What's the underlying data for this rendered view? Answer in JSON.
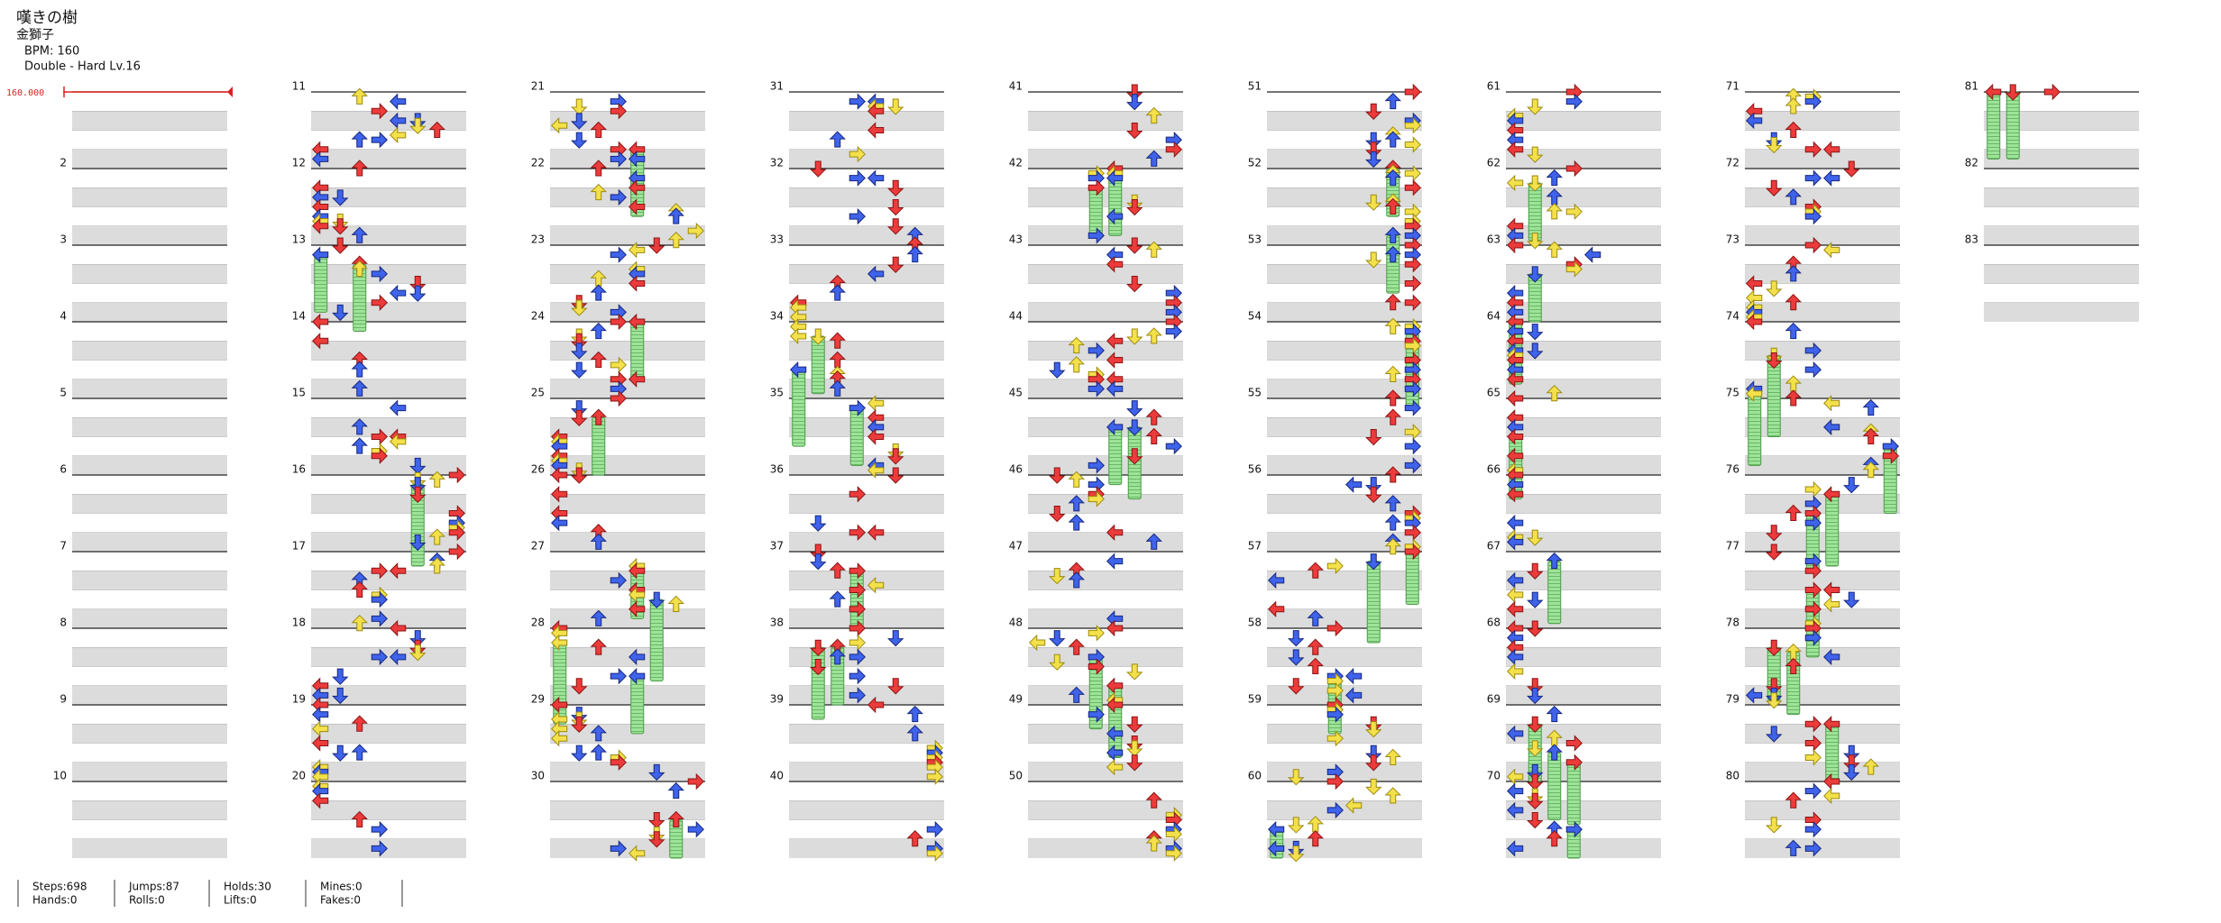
{
  "header": {
    "title": "嘆きの樹",
    "artist": "金獅子",
    "bpm": "BPM: 160",
    "difficulty": "Double - Hard Lv.16"
  },
  "bpm_marker": "160.000",
  "measure_labels": [
    2,
    3,
    4,
    5,
    6,
    7,
    8,
    9,
    10,
    11,
    12,
    13,
    14,
    15,
    16,
    17,
    18,
    19,
    20,
    21,
    22,
    23,
    24,
    25,
    26,
    27,
    28,
    29,
    30,
    31,
    32,
    33,
    34,
    35,
    36,
    37,
    38,
    39,
    40,
    41,
    42,
    43,
    44,
    45,
    46,
    47,
    48,
    49,
    50,
    51,
    52,
    53,
    54,
    55,
    56,
    57,
    58,
    59,
    60,
    61,
    62,
    63,
    64,
    65,
    66,
    67,
    68,
    69,
    70,
    71,
    72,
    73,
    74,
    75,
    76,
    77,
    78,
    79,
    80,
    81,
    82,
    83
  ],
  "stats": [
    [
      "Steps:698",
      "Hands:0"
    ],
    [
      "Jumps:87",
      "Rolls:0"
    ],
    [
      "Holds:30",
      "Lifts:0"
    ],
    [
      "Mines:0",
      "Fakes:0"
    ]
  ]
}
